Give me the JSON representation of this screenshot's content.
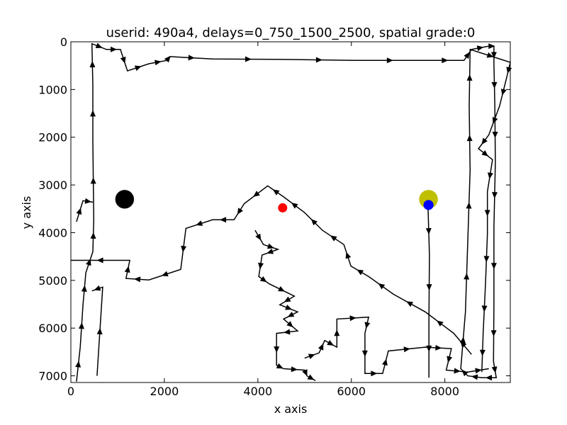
{
  "chart_data": {
    "type": "line",
    "title": "userid: 490a4, delays=0_750_1500_2500, spatial grade:0",
    "x_label": "x axis",
    "y_label": "y axis",
    "xlim": [
      0,
      9400
    ],
    "ylim": [
      7140,
      0
    ],
    "xticks": [
      0,
      2000,
      4000,
      6000,
      8000
    ],
    "yticks": [
      0,
      1000,
      2000,
      3000,
      4000,
      5000,
      6000,
      7000
    ],
    "color": "#000000",
    "x": [
      120,
      200,
      260,
      320,
      470,
      490,
      470,
      470,
      450,
      760,
      1060,
      1210,
      1670,
      2050,
      2120,
      3030,
      4550,
      6060,
      7580,
      8410,
      8570,
      8940,
      9050,
      9050,
      9070,
      9080,
      9050,
      9050,
      9040,
      9100,
      8790,
      8490,
      8340,
      8440,
      8490,
      8540,
      8520,
      8540,
      9400,
      9320,
      9170,
      8940,
      8720,
      9020,
      8910,
      8910,
      8870,
      8820,
      8790,
      null,
      8570,
      8190,
      7580,
      6900,
      6370,
      5990,
      5840,
      5380,
      5000,
      4550,
      4210,
      3710,
      3490,
      3030,
      2460,
      2350,
      1670,
      1180,
      1260,
      0,
      null,
      3940,
      4120,
      4430,
      4090,
      4020,
      4240,
      4780,
      4470,
      4850,
      4550,
      4850,
      4400,
      4400,
      4550,
      5000,
      5050,
      5230,
      null,
      5000,
      5310,
      5430,
      5690,
      5690,
      6370,
      6290,
      6290,
      6670,
      6790,
      7580,
      8140,
      8030,
      8490,
      8940,
      null,
      7640,
      7670,
      7660,
      7660,
      null,
      120,
      260,
      470,
      null,
      560,
      680,
      450
    ],
    "values": [
      7120,
      6400,
      5510,
      4840,
      4400,
      3730,
      2100,
      910,
      40,
      160,
      160,
      610,
      460,
      390,
      310,
      360,
      370,
      390,
      390,
      390,
      160,
      90,
      90,
      460,
      1350,
      2540,
      3880,
      5510,
      6700,
      7040,
      7040,
      7000,
      6850,
      5660,
      4180,
      2690,
      1350,
      160,
      430,
      760,
      1350,
      1950,
      2240,
      2470,
      3140,
      4030,
      5070,
      6110,
      6920,
      null,
      6550,
      6110,
      5660,
      5290,
      4920,
      4700,
      4250,
      3950,
      3580,
      3250,
      3020,
      3390,
      3730,
      3730,
      3910,
      4770,
      4990,
      4960,
      4580,
      4580,
      null,
      3950,
      4250,
      4350,
      4470,
      4920,
      5070,
      5330,
      5510,
      5660,
      5810,
      6060,
      6110,
      6780,
      6850,
      6880,
      7000,
      7100,
      null,
      6630,
      6520,
      6260,
      6400,
      5810,
      5770,
      6110,
      6950,
      6950,
      6480,
      6400,
      6430,
      6880,
      6920,
      6850,
      null,
      3460,
      4470,
      5810,
      7040,
      null,
      3770,
      3330,
      3360,
      null,
      7000,
      5140,
      5220
    ],
    "markers": [
      {
        "x": 1150,
        "y": 3300,
        "color": "#000000",
        "size": 700
      },
      {
        "x": 7650,
        "y": 3300,
        "color": "#bfbf00",
        "size": 700
      },
      {
        "x": 7650,
        "y": 3420,
        "color": "#0000ff",
        "size": 200
      },
      {
        "x": 4530,
        "y": 3480,
        "color": "#ff0000",
        "size": 170
      }
    ]
  }
}
